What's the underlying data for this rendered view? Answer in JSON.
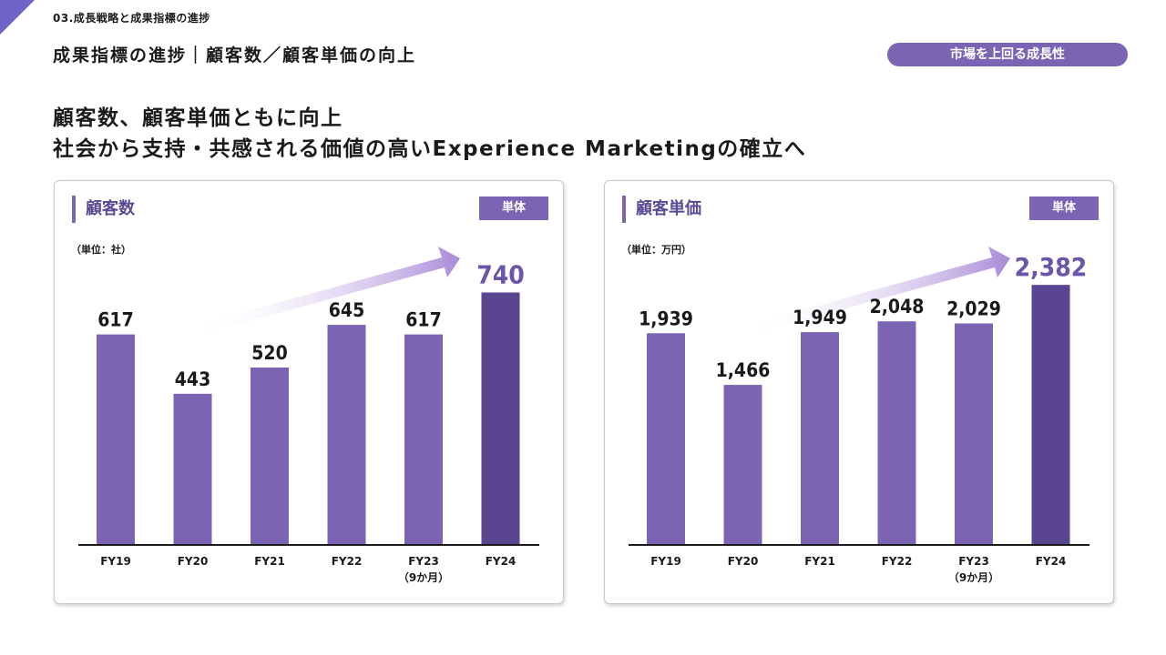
{
  "header": {
    "section": "03.成長戦略と成果指標の進捗",
    "page_title": "成果指標の進捗｜顧客数／顧客単価の向上",
    "badge": "市場を上回る成長性"
  },
  "headline": {
    "line1": "顧客数、顧客単価ともに向上",
    "line2": "社会から支持・共感される価値の高いExperience Marketingの確立へ"
  },
  "colors": {
    "accent": "#7b64b3",
    "bar": "#7b64b3",
    "bar_highlight": "#5a4690",
    "value_highlight": "#6a55a8"
  },
  "charts": [
    {
      "title": "顧客数",
      "tag": "単体",
      "unit": "（単位：社）"
    },
    {
      "title": "顧客単価",
      "tag": "単体",
      "unit": "（単位：万円）"
    }
  ],
  "chart_data": [
    {
      "type": "bar",
      "title": "顧客数",
      "categories": [
        "FY19",
        "FY20",
        "FY21",
        "FY22",
        "FY23",
        "FY24"
      ],
      "category_sublabels": [
        "",
        "",
        "",
        "",
        "（9か月）",
        ""
      ],
      "values": [
        617,
        443,
        520,
        645,
        617,
        740
      ],
      "value_labels": [
        "617",
        "443",
        "520",
        "645",
        "617",
        "740"
      ],
      "highlight_index": 5,
      "ylim": [
        0,
        800
      ],
      "trend_arrow": true
    },
    {
      "type": "bar",
      "title": "顧客単価",
      "categories": [
        "FY19",
        "FY20",
        "FY21",
        "FY22",
        "FY23",
        "FY24"
      ],
      "category_sublabels": [
        "",
        "",
        "",
        "",
        "（9か月）",
        ""
      ],
      "values": [
        1939,
        1466,
        1949,
        2048,
        2029,
        2382
      ],
      "value_labels": [
        "1,939",
        "1,466",
        "1,949",
        "2,048",
        "2,029",
        "2,382"
      ],
      "highlight_index": 5,
      "ylim": [
        0,
        2500
      ],
      "trend_arrow": true
    }
  ]
}
